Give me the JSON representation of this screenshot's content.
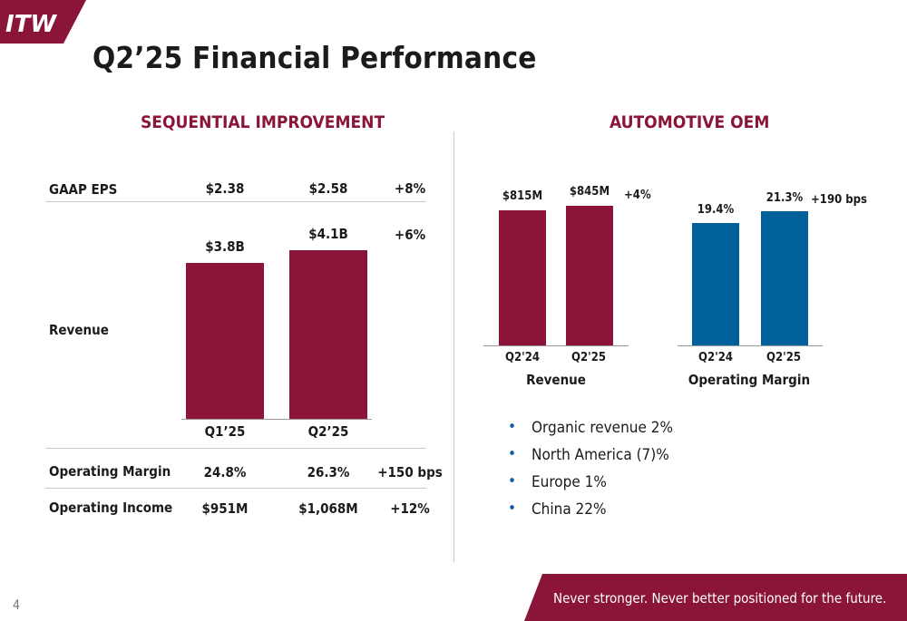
{
  "brand": {
    "logo_text": "ITW",
    "primary_color": "#8a1538",
    "accent_blue": "#00609c"
  },
  "title": "Q2’25 Financial Performance",
  "left": {
    "heading": "SEQUENTIAL IMPROVEMENT",
    "rows": {
      "eps": {
        "label": "GAAP EPS",
        "q1": "$2.38",
        "q2": "$2.58",
        "change": "+8%"
      },
      "revenue": {
        "label": "Revenue",
        "q1": "$3.8B",
        "q2": "$4.1B",
        "change": "+6%"
      },
      "margin": {
        "label": "Operating Margin",
        "q1": "24.8%",
        "q2": "26.3%",
        "change": "+150 bps"
      },
      "income": {
        "label": "Operating Income",
        "q1": "$951M",
        "q2": "$1,068M",
        "change": "+12%"
      }
    },
    "periods": [
      "Q1’25",
      "Q2’25"
    ]
  },
  "right": {
    "heading": "AUTOMOTIVE OEM",
    "revenue_chart": {
      "title": "Revenue",
      "change": "+4%"
    },
    "margin_chart": {
      "title": "Operating Margin",
      "change": "+190 bps"
    },
    "bullets": [
      "Organic revenue 2%",
      "North America (7)%",
      "Europe 1%",
      "China 22%"
    ]
  },
  "chart_data": [
    {
      "type": "bar",
      "categories": [
        "Q1’25",
        "Q2’25"
      ],
      "values": [
        3.8,
        4.1
      ],
      "value_labels": [
        "$3.8B",
        "$4.1B"
      ],
      "xlabel": "",
      "ylabel": "Revenue",
      "ylim": [
        0,
        4.1
      ],
      "color": "#8a1538"
    },
    {
      "type": "bar",
      "categories": [
        "Q2'24",
        "Q2'25"
      ],
      "values": [
        815,
        845
      ],
      "value_labels": [
        "$815M",
        "$845M"
      ],
      "title": "Revenue",
      "annotation": "+4%",
      "ylim": [
        0,
        845
      ],
      "color": "#8a1538"
    },
    {
      "type": "bar",
      "categories": [
        "Q2'24",
        "Q2'25"
      ],
      "values": [
        19.4,
        21.3
      ],
      "value_labels": [
        "19.4%",
        "21.3%"
      ],
      "title": "Operating Margin",
      "annotation": "+190 bps",
      "ylim": [
        0,
        21.3
      ],
      "color": "#00609c"
    }
  ],
  "footer": {
    "tagline": "Never stronger. Never better positioned for the future.",
    "page": "4"
  }
}
